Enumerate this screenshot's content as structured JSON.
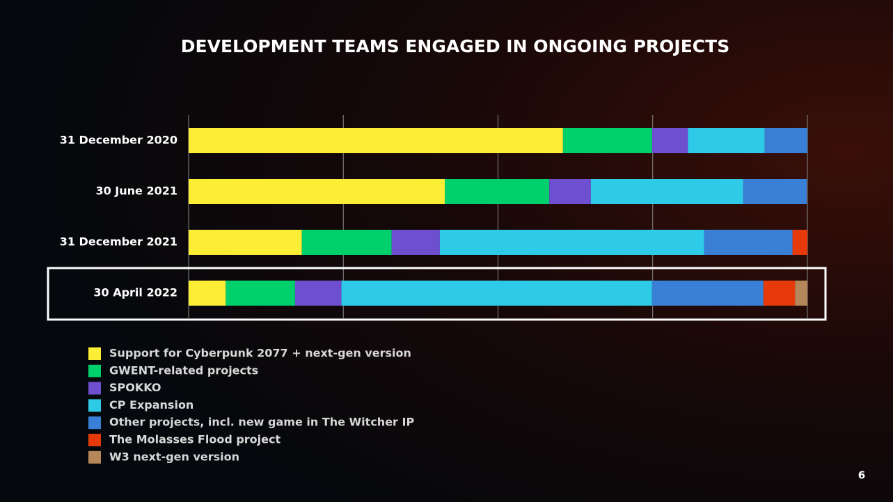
{
  "chart_data": {
    "type": "stacked-bar-horizontal",
    "title": "DEVELOPMENT TEAMS ENGAGED IN ONGOING PROJECTS",
    "categories": [
      "31 December 2020",
      "30 June 2021",
      "31 December 2021",
      "30 April 2022"
    ],
    "series": [
      {
        "name": "Support for Cyberpunk 2077 + next-gen version",
        "color": "#fced35",
        "values": [
          60.5,
          41.4,
          18.3,
          6.0
        ]
      },
      {
        "name": "GWENT-related projects",
        "color": "#00d06c",
        "values": [
          14.4,
          16.9,
          14.5,
          11.2
        ]
      },
      {
        "name": "SPOKKO",
        "color": "#6d4fd0",
        "values": [
          5.8,
          6.7,
          7.8,
          7.5
        ]
      },
      {
        "name": "CP Expansion",
        "color": "#2ecbe8",
        "values": [
          12.4,
          24.6,
          42.7,
          50.2
        ]
      },
      {
        "name": "Other projects, incl. new game in The Witcher IP",
        "color": "#3a7fd6",
        "values": [
          6.9,
          10.3,
          14.3,
          18.0
        ]
      },
      {
        "name": "The Molasses Flood project",
        "color": "#e63a0a",
        "values": [
          0,
          0,
          2.4,
          5.1
        ]
      },
      {
        "name": "W3 next-gen version",
        "color": "#b5875a",
        "values": [
          0,
          0,
          0,
          2.0
        ]
      }
    ],
    "xlim": [
      0,
      100
    ],
    "xticks": [
      0,
      25,
      50,
      75,
      100
    ],
    "grid": true,
    "page_number": "6"
  }
}
